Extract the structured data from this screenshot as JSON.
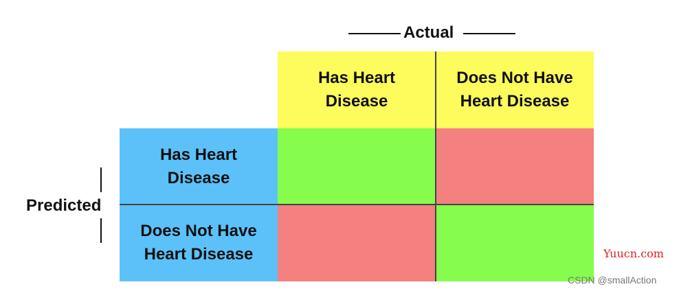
{
  "diagram": {
    "axis_actual": "Actual",
    "axis_predicted": "Predicted",
    "column_headers": [
      "Has Heart\nDisease",
      "Does Not Have\nHeart Disease"
    ],
    "row_headers": [
      "Has Heart\nDisease",
      "Does Not Have\nHeart Disease"
    ],
    "colors": {
      "header_yellow": "#fcfc5c",
      "header_blue": "#5cc1f9",
      "correct_green": "#86fc4c",
      "incorrect_red": "#f48080"
    }
  },
  "watermarks": {
    "site": "Yuucn.com",
    "author": "CSDN @smallAction"
  }
}
